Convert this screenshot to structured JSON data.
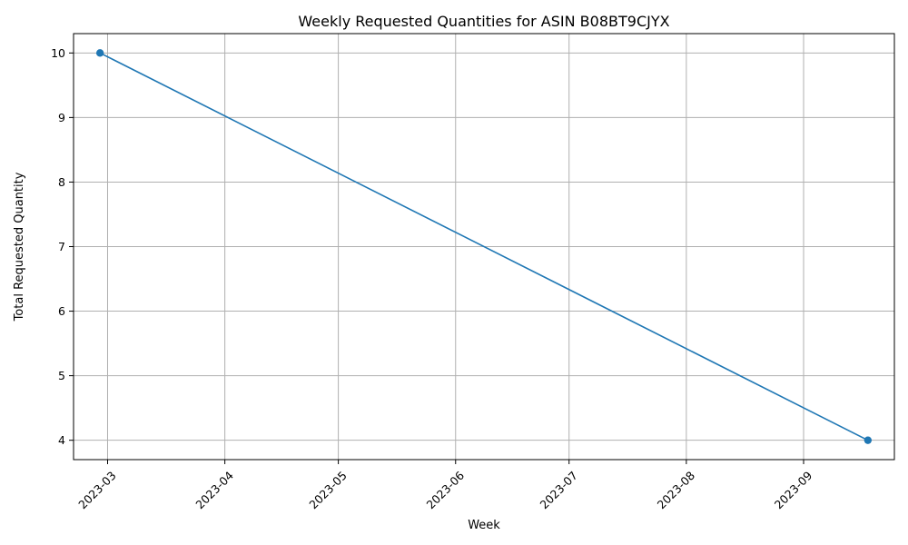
{
  "chart_data": {
    "type": "line",
    "title": "Weekly Requested Quantities for ASIN B08BT9CJYX",
    "xlabel": "Week",
    "ylabel": "Total Requested Quantity",
    "x_ticks": [
      "2023-03",
      "2023-04",
      "2023-05",
      "2023-06",
      "2023-07",
      "2023-08",
      "2023-09"
    ],
    "y_ticks": [
      4,
      5,
      6,
      7,
      8,
      9,
      10
    ],
    "xlim": [
      "2023-02-20",
      "2023-09-25"
    ],
    "ylim": [
      3.7,
      10.3
    ],
    "grid": true,
    "x_tick_rotation": "45 degrees",
    "series": [
      {
        "color": "#1f77b4",
        "marker": "circle",
        "points": [
          {
            "x": "2023-02-27",
            "y": 10
          },
          {
            "x": "2023-09-18",
            "y": 4
          }
        ]
      }
    ]
  }
}
